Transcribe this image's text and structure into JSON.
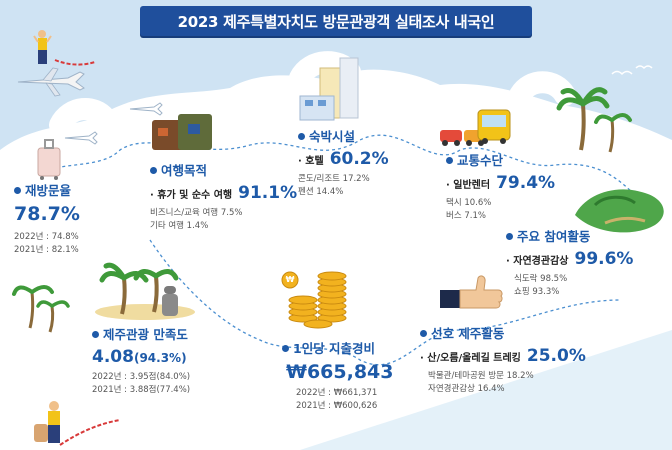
{
  "title": "2023 제주특별자치도 방문관광객 실태조사 내국인",
  "sections": {
    "revisit": {
      "heading": "재방문율",
      "value": "78.7%",
      "sub": [
        "2022년 : 74.8%",
        "2021년 : 82.1%"
      ]
    },
    "purpose": {
      "heading": "여행목적",
      "top_label": "휴가 및 순수 여행",
      "top_value": "91.1%",
      "sub": [
        "비즈니스/교육 여행 7.5%",
        "기타 여행 1.4%"
      ]
    },
    "lodging": {
      "heading": "숙박시설",
      "top_label": "호텔",
      "top_value": "60.2%",
      "sub": [
        "콘도/리조트 17.2%",
        "펜션 14.4%"
      ]
    },
    "transport": {
      "heading": "교통수단",
      "top_label": "일반렌터",
      "top_value": "79.4%",
      "sub": [
        "택시 10.6%",
        "버스 7.1%"
      ]
    },
    "activities": {
      "heading": "주요 참여활동",
      "top_label": "자연경관감상",
      "top_value": "99.6%",
      "sub": [
        "식도락 98.5%",
        "쇼핑 93.3%"
      ]
    },
    "satisfaction": {
      "heading": "제주관광 만족도",
      "value": "4.08",
      "value_pct": "(94.3%)",
      "sub": [
        "2022년 : 3.95점(84.0%)",
        "2021년 : 3.88점(77.4%)"
      ]
    },
    "spending": {
      "heading": "1인당 지출경비",
      "value": "₩665,843",
      "sub": [
        "2022년 : ₩661,371",
        "2021년 : ₩600,626"
      ],
      "coin_symbol": "₩"
    },
    "preferred": {
      "heading": "선호 제주활동",
      "top_label": "산/오름/올레길 트레킹",
      "top_value": "25.0%",
      "sub": [
        "박물관/테마공원 방문 18.2%",
        "자연경관감상 16.4%"
      ]
    }
  },
  "colors": {
    "accent": "#1e5aa8",
    "title_bg": "#1f4f9c",
    "sky": "#cfe3f3",
    "cloud": "#ffffff"
  },
  "icons": [
    "airplane-icon",
    "suitcase-icon",
    "luggage-icon",
    "building-icon",
    "car-icon",
    "bus-icon",
    "palm-tree-icon",
    "dolharubang-icon",
    "coin-stack-icon",
    "thumbs-up-icon",
    "island-icon",
    "bird-icon",
    "traveler-icon"
  ]
}
